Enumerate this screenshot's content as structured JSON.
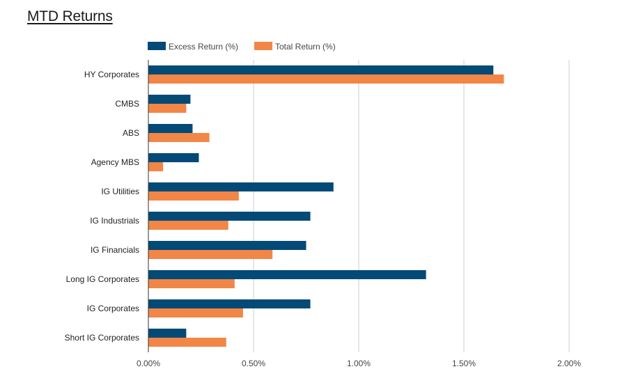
{
  "colors": {
    "excess": "#034a77",
    "total": "#f28646",
    "grid": "#cccccc",
    "axis": "#333333"
  },
  "chart_data": {
    "type": "bar",
    "orientation": "horizontal",
    "title": "MTD Returns",
    "categories": [
      "HY Corporates",
      "CMBS",
      "ABS",
      "Agency MBS",
      "IG Utilities",
      "IG Industrials",
      "IG Financials",
      "Long IG Corporates",
      "IG Corporates",
      "Short IG Corporates"
    ],
    "series": [
      {
        "name": "Excess Return (%)",
        "color": "#034a77",
        "values": [
          1.64,
          0.2,
          0.21,
          0.24,
          0.88,
          0.77,
          0.75,
          1.32,
          0.77,
          0.18
        ]
      },
      {
        "name": "Total Return (%)",
        "color": "#f28646",
        "values": [
          1.69,
          0.18,
          0.29,
          0.07,
          0.43,
          0.38,
          0.59,
          0.41,
          0.45,
          0.37
        ]
      }
    ],
    "xlim": [
      0,
      2.0
    ],
    "xticks": [
      0,
      0.5,
      1.0,
      1.5,
      2.0
    ],
    "xtick_labels": [
      "0.00%",
      "0.50%",
      "1.00%",
      "1.50%",
      "2.00%"
    ],
    "grid": true,
    "legend_position": "top-left"
  }
}
